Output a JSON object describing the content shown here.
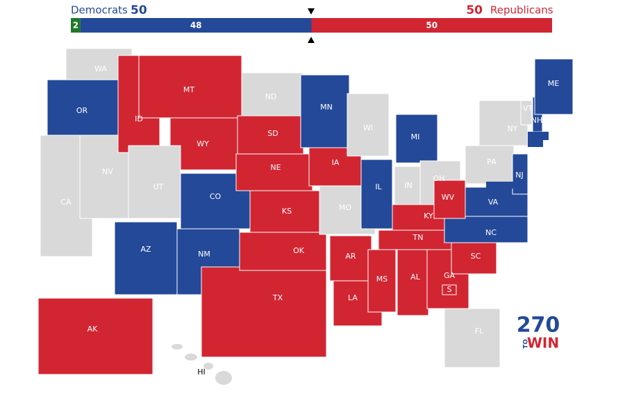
{
  "header": {
    "dem_label": "Democrats",
    "dem_total": 50,
    "rep_total": 50,
    "rep_label": "Republicans"
  },
  "bar": {
    "scale_max": 100,
    "segments": [
      {
        "value": 2,
        "color": "#1f7a26"
      },
      {
        "value": 48,
        "color": "#244999"
      },
      {
        "value": 50,
        "color": "#d22532"
      }
    ]
  },
  "colors": {
    "D": "#244999",
    "R": "#d22532",
    "N": "#d9d9d9"
  },
  "states": [
    {
      "label": "WA",
      "party": "N"
    },
    {
      "label": "OR",
      "party": "D"
    },
    {
      "label": "CA",
      "party": "N"
    },
    {
      "label": "NV",
      "party": "N"
    },
    {
      "label": "ID",
      "party": "R"
    },
    {
      "label": "MT",
      "party": "R"
    },
    {
      "label": "WY",
      "party": "R"
    },
    {
      "label": "UT",
      "party": "N"
    },
    {
      "label": "CO",
      "party": "D"
    },
    {
      "label": "AZ",
      "party": "D"
    },
    {
      "label": "NM",
      "party": "D"
    },
    {
      "label": "ND",
      "party": "N"
    },
    {
      "label": "SD",
      "party": "R"
    },
    {
      "label": "NE",
      "party": "R"
    },
    {
      "label": "KS",
      "party": "R"
    },
    {
      "label": "TX",
      "party": "R"
    },
    {
      "label": "OK",
      "party": "R"
    },
    {
      "label": "MN",
      "party": "D"
    },
    {
      "label": "IA",
      "party": "R"
    },
    {
      "label": "MO",
      "party": "N"
    },
    {
      "label": "AR",
      "party": "R"
    },
    {
      "label": "LA",
      "party": "R"
    },
    {
      "label": "WI",
      "party": "N"
    },
    {
      "label": "IL",
      "party": "D"
    },
    {
      "label": "MI",
      "party": "D"
    },
    {
      "label": "IN",
      "party": "N"
    },
    {
      "label": "OH",
      "party": "N"
    },
    {
      "label": "KY",
      "party": "R"
    },
    {
      "label": "TN",
      "party": "R"
    },
    {
      "label": "MS",
      "party": "R"
    },
    {
      "label": "AL",
      "party": "R"
    },
    {
      "label": "GA",
      "party": "R"
    },
    {
      "label": "FL",
      "party": "N"
    },
    {
      "label": "SC",
      "party": "R"
    },
    {
      "label": "NC",
      "party": "D"
    },
    {
      "label": "VA",
      "party": "D"
    },
    {
      "label": "WV",
      "party": "R"
    },
    {
      "label": "PA",
      "party": "N"
    },
    {
      "label": "NY",
      "party": "N"
    },
    {
      "label": "NJ",
      "party": "D"
    },
    {
      "label": "VT",
      "party": "N"
    },
    {
      "label": "NH",
      "party": "D"
    },
    {
      "label": "ME",
      "party": "D"
    },
    {
      "label": "AK",
      "party": "R"
    },
    {
      "label": "HI",
      "party": "N"
    }
  ],
  "special_marker": "S",
  "logo": {
    "number": "270",
    "to": "TO",
    "win": "WIN"
  }
}
